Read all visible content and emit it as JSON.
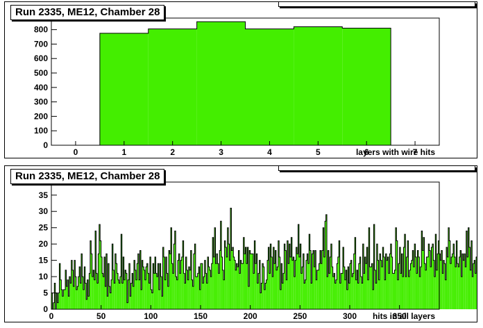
{
  "chart_data": [
    {
      "type": "bar",
      "title": "Run 2335, ME12, Chamber 28",
      "xlabel": "layers with wire hits",
      "ylabel": "",
      "xlim": [
        -0.5,
        7.5
      ],
      "ylim": [
        0,
        880
      ],
      "xticks": [
        "0",
        "1",
        "2",
        "3",
        "4",
        "5",
        "6",
        "7"
      ],
      "yticks": [
        "0",
        "100",
        "200",
        "300",
        "400",
        "500",
        "600",
        "700",
        "800"
      ],
      "categories": [
        "1",
        "2",
        "3",
        "4",
        "5",
        "6"
      ],
      "values": [
        775,
        805,
        855,
        805,
        820,
        810
      ],
      "fill_color": "#44ee00",
      "grid": false
    },
    {
      "type": "bar",
      "title": "Run 2335, ME12, Chamber 28",
      "xlabel": "hits in all layers",
      "ylabel": "",
      "xlim": [
        0,
        390
      ],
      "ylim": [
        0,
        39
      ],
      "xticks": [
        "0",
        "50",
        "100",
        "150",
        "200",
        "250",
        "300",
        "350"
      ],
      "yticks": [
        "0",
        "5",
        "10",
        "15",
        "20",
        "25",
        "30",
        "35"
      ],
      "bin_width": 1,
      "values": [
        5,
        0,
        2,
        8,
        0,
        5,
        2,
        5,
        14,
        9,
        6,
        4,
        6,
        6,
        12,
        7,
        9,
        4,
        10,
        8,
        15,
        12,
        7,
        15,
        10,
        6,
        7,
        10,
        13,
        8,
        17,
        10,
        6,
        13,
        8,
        3,
        9,
        4,
        11,
        21,
        17,
        10,
        12,
        9,
        24,
        11,
        8,
        17,
        26,
        21,
        16,
        11,
        10,
        16,
        7,
        17,
        4,
        14,
        7,
        5,
        9,
        20,
        12,
        8,
        17,
        14,
        11,
        9,
        8,
        10,
        23,
        8,
        16,
        9,
        12,
        11,
        2,
        9,
        14,
        4,
        8,
        11,
        7,
        15,
        12,
        9,
        14,
        17,
        9,
        18,
        6,
        15,
        13,
        12,
        9,
        13,
        14,
        11,
        8,
        16,
        6,
        5,
        14,
        11,
        16,
        11,
        10,
        14,
        6,
        14,
        10,
        4,
        19,
        16,
        9,
        16,
        11,
        7,
        18,
        17,
        25,
        14,
        11,
        20,
        24,
        10,
        9,
        15,
        17,
        11,
        15,
        16,
        21,
        11,
        8,
        16,
        12,
        9,
        13,
        12,
        18,
        9,
        7,
        17,
        20,
        10,
        10,
        11,
        13,
        6,
        14,
        14,
        8,
        10,
        15,
        11,
        8,
        16,
        13,
        12,
        10,
        14,
        22,
        16,
        25,
        14,
        17,
        14,
        11,
        18,
        27,
        16,
        12,
        9,
        21,
        19,
        16,
        25,
        20,
        15,
        31,
        18,
        19,
        16,
        15,
        12,
        14,
        13,
        18,
        11,
        15,
        14,
        14,
        22,
        17,
        19,
        14,
        19,
        7,
        18,
        17,
        17,
        17,
        11,
        21,
        14,
        17,
        8,
        11,
        15,
        5,
        8,
        14,
        13,
        6,
        8,
        9,
        15,
        19,
        11,
        20,
        16,
        10,
        19,
        14,
        18,
        12,
        13,
        21,
        16,
        6,
        14,
        8,
        11,
        20,
        18,
        9,
        21,
        14,
        20,
        16,
        22,
        15,
        16,
        10,
        15,
        19,
        17,
        26,
        16,
        20,
        11,
        13,
        17,
        8,
        9,
        15,
        17,
        14,
        23,
        18,
        8,
        17,
        18,
        13,
        18,
        9,
        12,
        12,
        14,
        18,
        14,
        18,
        25,
        16,
        27,
        29,
        10,
        18,
        11,
        16,
        20,
        13,
        10,
        11,
        8,
        9,
        14,
        16,
        21,
        8,
        11,
        11,
        19,
        13,
        9,
        12,
        6,
        13,
        8,
        14,
        15,
        10,
        11,
        17,
        22,
        9,
        12,
        8,
        14,
        16,
        10,
        8,
        20,
        11,
        16,
        14,
        19,
        9,
        25,
        13,
        13,
        14,
        6,
        26,
        12,
        8,
        20,
        15,
        9,
        17,
        15,
        13,
        19,
        16,
        9,
        17,
        15,
        16,
        11,
        17,
        20,
        16,
        11,
        11,
        12,
        25,
        21,
        9,
        14,
        19,
        11,
        17,
        10,
        19,
        23,
        10,
        16,
        21,
        10,
        12,
        14,
        15,
        18,
        13,
        20,
        16,
        11,
        18,
        16,
        10,
        13,
        24,
        18,
        22,
        14,
        12,
        16,
        16,
        20,
        18,
        13,
        19,
        20,
        15,
        10,
        23,
        12,
        17,
        21,
        17,
        15,
        18,
        11,
        15,
        14,
        9,
        19,
        16,
        25,
        21,
        14,
        16,
        17,
        20,
        16,
        13,
        21,
        14,
        13,
        16,
        18,
        10,
        17,
        15,
        17,
        13,
        24,
        16,
        25,
        19,
        12,
        21,
        10,
        14,
        15,
        11,
        16,
        18,
        12,
        22,
        14,
        19,
        13,
        18,
        20,
        10,
        25,
        14,
        18,
        15,
        18,
        11,
        21,
        14,
        18,
        13,
        17,
        16,
        20,
        12
      ],
      "fill_color": "#44ee00",
      "grid": false
    }
  ]
}
